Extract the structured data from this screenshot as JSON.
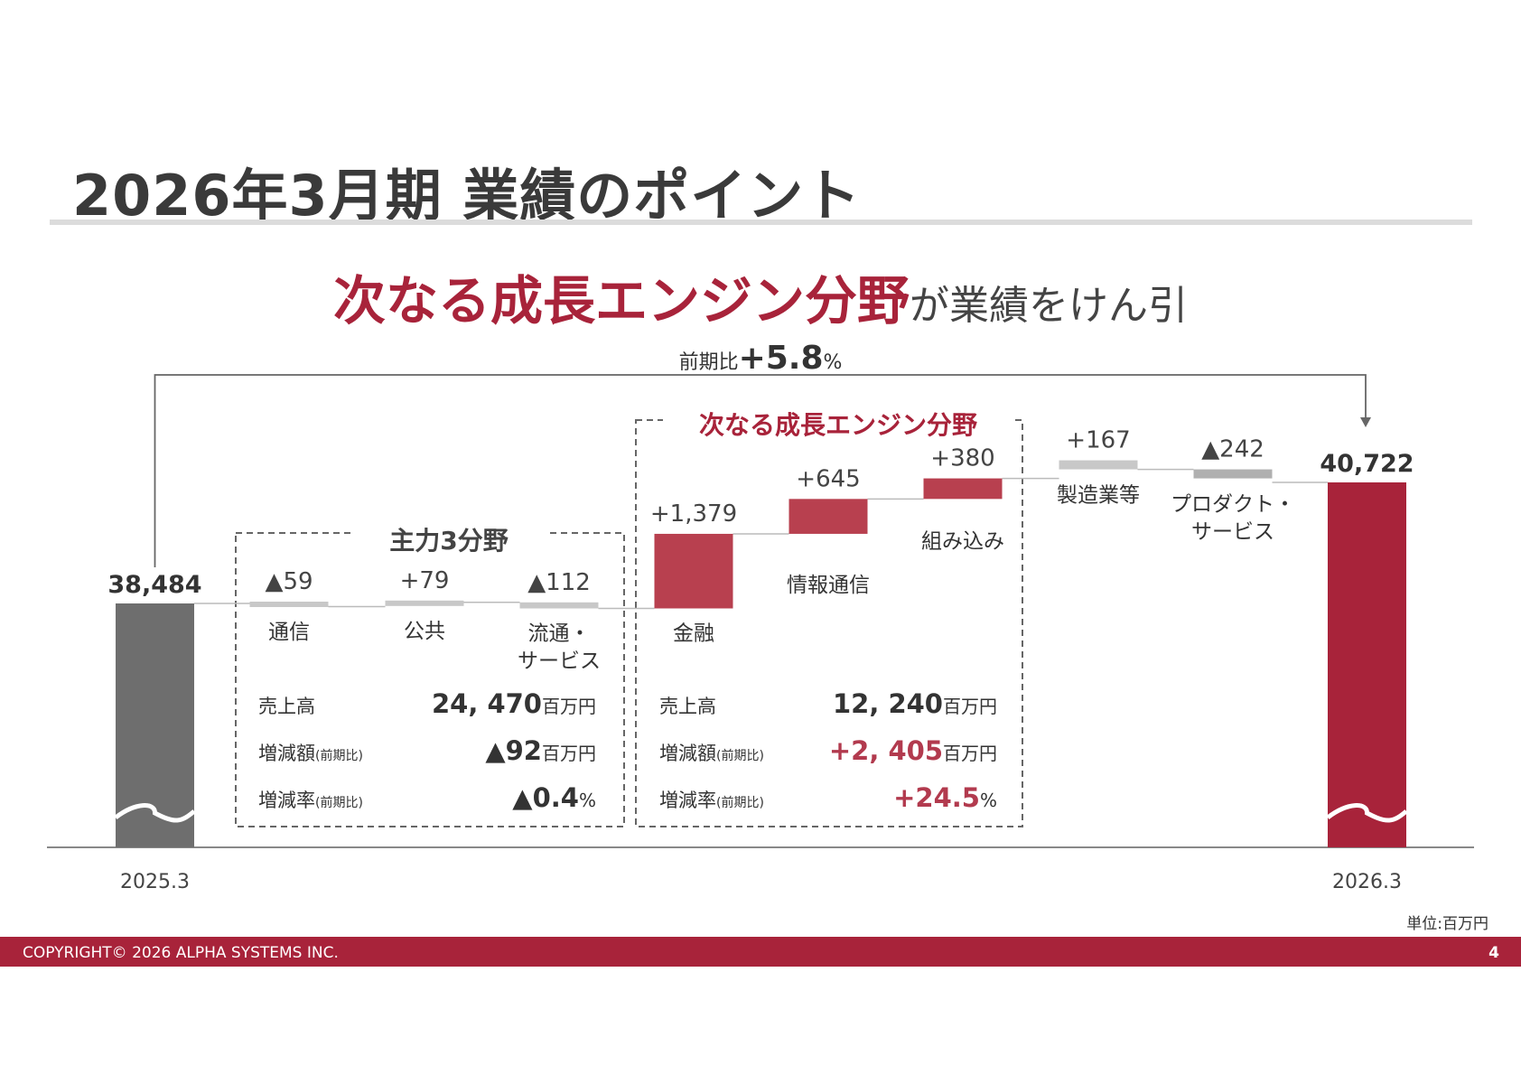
{
  "slide": {
    "title": "2026年3月期 業績のポイント",
    "headline_red": "次なる成長エンジン分野",
    "headline_rest": "が業績をけん引",
    "unit_note": "単位:百万円",
    "footer": "COPYRIGHT© 2026 ALPHA SYSTEMS INC.",
    "page_number": "4"
  },
  "total_change": {
    "label": "前期比",
    "value": "+5.8",
    "unit": "%"
  },
  "groups": {
    "main": {
      "title": "主力3分野",
      "rows": [
        {
          "label": "売上高",
          "sub": "",
          "value": "24, 470",
          "unit": "百万円"
        },
        {
          "label": "増減額",
          "sub": "(前期比)",
          "value": "▲92",
          "unit": "百万円"
        },
        {
          "label": "増減率",
          "sub": "(前期比)",
          "value": "▲0.4",
          "unit": "%"
        }
      ]
    },
    "growth": {
      "title": "次なる成長エンジン分野",
      "rows": [
        {
          "label": "売上高",
          "sub": "",
          "value": "12, 240",
          "unit": "百万円"
        },
        {
          "label": "増減額",
          "sub": "(前期比)",
          "value": "+2, 405",
          "unit": "百万円"
        },
        {
          "label": "増減率",
          "sub": "(前期比)",
          "value": "+24.5",
          "unit": "%"
        }
      ]
    }
  },
  "colors": {
    "accent_red": "#a8233a",
    "increase_red": "#b8404f",
    "start_grey": "#6e6e6e",
    "minor_grey": "#c8c8c8",
    "decrease_grey": "#b0b0b0"
  },
  "chart_data": {
    "type": "waterfall",
    "title": "",
    "ylabel": "",
    "unit": "百万円",
    "axis_break": true,
    "start": {
      "category": "2025.3",
      "label": "38,484",
      "value": 38484
    },
    "steps": [
      {
        "category": "通信",
        "label": "▲59",
        "value": -59,
        "group": "主力3分野"
      },
      {
        "category": "公共",
        "label": "+79",
        "value": 79,
        "group": "主力3分野"
      },
      {
        "category": "流通・\nサービス",
        "label": "▲112",
        "value": -112,
        "group": "主力3分野"
      },
      {
        "category": "金融",
        "label": "+1,379",
        "value": 1379,
        "group": "次なる成長エンジン分野"
      },
      {
        "category": "情報通信",
        "label": "+645",
        "value": 645,
        "group": "次なる成長エンジン分野"
      },
      {
        "category": "組み込み",
        "label": "+380",
        "value": 380,
        "group": "次なる成長エンジン分野"
      },
      {
        "category": "製造業等",
        "label": "+167",
        "value": 167,
        "group": ""
      },
      {
        "category": "プロダクト・\nサービス",
        "label": "▲242",
        "value": -242,
        "group": ""
      }
    ],
    "end": {
      "category": "2026.3",
      "label": "40,722",
      "value": 40722
    }
  }
}
